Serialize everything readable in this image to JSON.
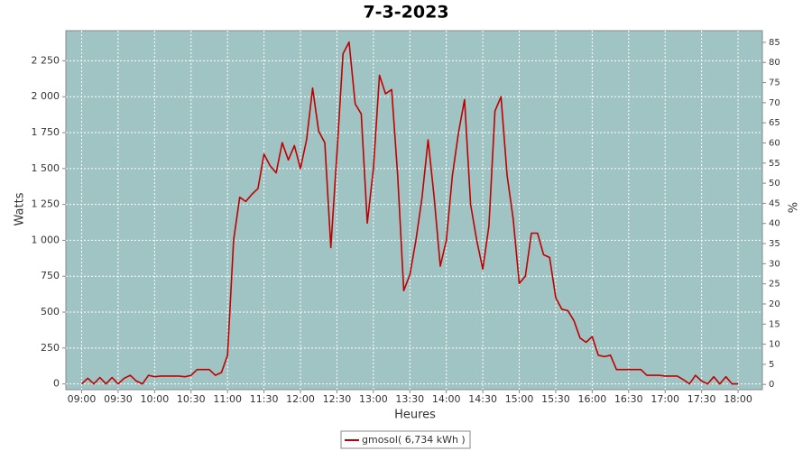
{
  "chart_data": {
    "type": "line",
    "title": "7-3-2023",
    "x_label": "Heures",
    "y_label": "Watts",
    "y2_label": "%",
    "x": [
      "09:00",
      "09:05",
      "09:10",
      "09:15",
      "09:20",
      "09:25",
      "09:30",
      "09:35",
      "09:40",
      "09:45",
      "09:50",
      "09:55",
      "10:00",
      "10:05",
      "10:10",
      "10:15",
      "10:20",
      "10:25",
      "10:30",
      "10:35",
      "10:40",
      "10:45",
      "10:50",
      "10:55",
      "11:00",
      "11:05",
      "11:10",
      "11:15",
      "11:20",
      "11:25",
      "11:30",
      "11:35",
      "11:40",
      "11:45",
      "11:50",
      "11:55",
      "12:00",
      "12:05",
      "12:10",
      "12:15",
      "12:20",
      "12:25",
      "12:30",
      "12:35",
      "12:40",
      "12:45",
      "12:50",
      "12:55",
      "13:00",
      "13:05",
      "13:10",
      "13:15",
      "13:20",
      "13:25",
      "13:30",
      "13:35",
      "13:40",
      "13:45",
      "13:50",
      "13:55",
      "14:00",
      "14:05",
      "14:10",
      "14:15",
      "14:20",
      "14:25",
      "14:30",
      "14:35",
      "14:40",
      "14:45",
      "14:50",
      "14:55",
      "15:00",
      "15:05",
      "15:10",
      "15:15",
      "15:20",
      "15:25",
      "15:30",
      "15:35",
      "15:40",
      "15:45",
      "15:50",
      "15:55",
      "16:00",
      "16:05",
      "16:10",
      "16:15",
      "16:20",
      "16:25",
      "16:30",
      "16:35",
      "16:40",
      "16:45",
      "16:50",
      "16:55",
      "17:00",
      "17:05",
      "17:10",
      "17:15",
      "17:20",
      "17:25",
      "17:30",
      "17:35",
      "17:40",
      "17:45",
      "17:50",
      "17:55",
      "18:00"
    ],
    "series": [
      {
        "name": "gmosol( 6,734 kWh )",
        "color": "#c00000",
        "values": [
          0,
          40,
          0,
          45,
          0,
          45,
          0,
          40,
          60,
          20,
          0,
          60,
          50,
          55,
          55,
          55,
          55,
          50,
          60,
          100,
          100,
          100,
          60,
          80,
          200,
          1000,
          1300,
          1270,
          1320,
          1360,
          1600,
          1520,
          1470,
          1680,
          1560,
          1660,
          1500,
          1700,
          2060,
          1760,
          1680,
          950,
          1600,
          2300,
          2380,
          1950,
          1880,
          1120,
          1500,
          2150,
          2020,
          2050,
          1450,
          650,
          760,
          1000,
          1300,
          1700,
          1300,
          820,
          1000,
          1450,
          1750,
          1980,
          1250,
          1000,
          800,
          1100,
          1900,
          2000,
          1450,
          1150,
          700,
          750,
          1050,
          1050,
          900,
          880,
          600,
          520,
          510,
          440,
          320,
          290,
          330,
          200,
          190,
          200,
          100,
          100,
          100,
          100,
          100,
          60,
          60,
          60,
          55,
          55,
          55,
          30,
          0,
          60,
          20,
          0,
          50,
          0,
          50,
          0,
          0
        ]
      }
    ],
    "xlim": [
      "08:47",
      "18:20"
    ],
    "xticks": [
      "09:00",
      "09:30",
      "10:00",
      "10:30",
      "11:00",
      "11:30",
      "12:00",
      "12:30",
      "13:00",
      "13:30",
      "14:00",
      "14:30",
      "15:00",
      "15:30",
      "16:00",
      "16:30",
      "17:00",
      "17:30",
      "18:00"
    ],
    "ylim": [
      -40,
      2460
    ],
    "yticks": [
      0,
      250,
      500,
      750,
      {
        "value": 1000,
        "label": "1 000"
      },
      {
        "value": 1250,
        "label": "1 250"
      },
      {
        "value": 1500,
        "label": "1 500"
      },
      {
        "value": 1750,
        "label": "1 750"
      },
      {
        "value": 2000,
        "label": "2 000"
      },
      {
        "value": 2250,
        "label": "2 250"
      }
    ],
    "y2lim": [
      -1.3,
      87.9
    ],
    "y2ticks": [
      0,
      5,
      10,
      15,
      20,
      25,
      30,
      35,
      40,
      45,
      50,
      55,
      60,
      65,
      70,
      75,
      80,
      85
    ],
    "grid": true,
    "background": "#a0c4c4"
  }
}
